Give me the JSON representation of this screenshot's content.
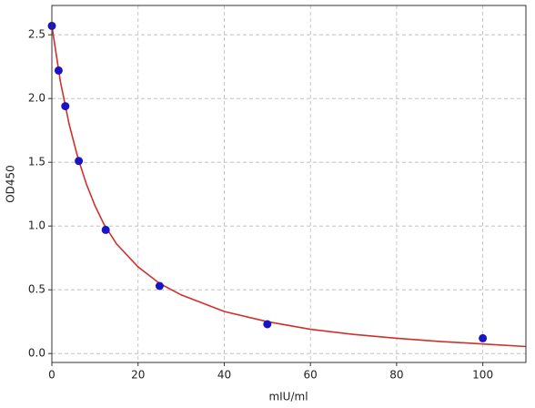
{
  "chart_data": {
    "type": "scatter",
    "xlabel": "mIU/ml",
    "ylabel": "OD450",
    "xlim": [
      0,
      110
    ],
    "ylim": [
      -0.07,
      2.73
    ],
    "xticks": [
      0,
      20,
      40,
      60,
      80,
      100
    ],
    "yticks": [
      {
        "value": 0,
        "label": "0.0"
      },
      {
        "value": 0.5,
        "label": "0.5"
      },
      {
        "value": 1,
        "label": "1.0"
      },
      {
        "value": 1.5,
        "label": "1.5"
      },
      {
        "value": 2,
        "label": "2.0"
      },
      {
        "value": 2.5,
        "label": "2.5"
      }
    ],
    "grid": true,
    "series": [
      {
        "type": "scatter",
        "color": "#1a14c4",
        "x": [
          0,
          1.5625,
          3.125,
          6.25,
          12.5,
          25,
          50,
          100
        ],
        "values": [
          2.57,
          2.22,
          1.94,
          1.51,
          0.97,
          0.53,
          0.23,
          0.12
        ]
      },
      {
        "type": "line",
        "color": "#d0302c",
        "x": [
          0,
          2,
          4,
          6,
          8,
          10,
          12,
          15,
          20,
          25,
          30,
          40,
          50,
          60,
          70,
          80,
          90,
          100,
          110
        ],
        "values": [
          2.57,
          2.13,
          1.8,
          1.54,
          1.33,
          1.16,
          1.02,
          0.86,
          0.68,
          0.55,
          0.46,
          0.33,
          0.25,
          0.19,
          0.15,
          0.12,
          0.095,
          0.075,
          0.055
        ]
      }
    ]
  }
}
